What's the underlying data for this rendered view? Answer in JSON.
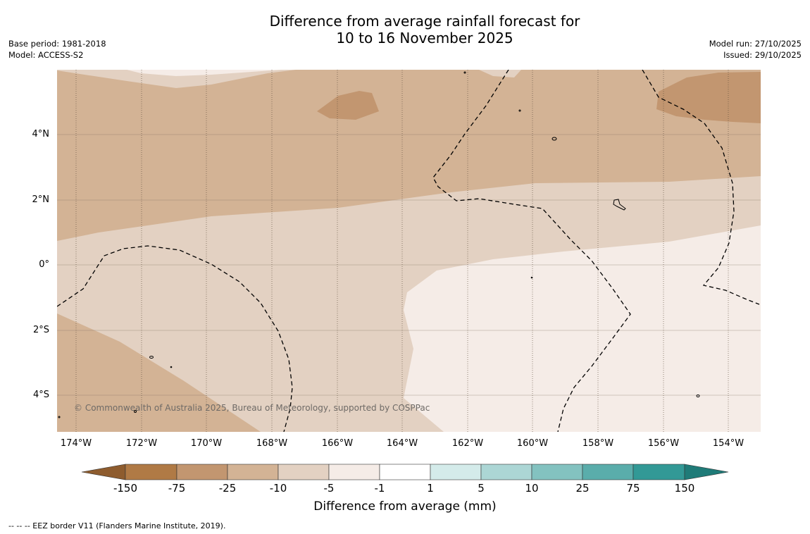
{
  "title": {
    "line1": "Difference from average rainfall forecast for",
    "line2": "10 to 16 November 2025"
  },
  "meta_left": {
    "base_period": "Base period: 1981-2018",
    "model": "Model: ACCESS-S2"
  },
  "meta_right": {
    "model_run": "Model run: 27/10/2025",
    "issued": "Issued: 29/10/2025"
  },
  "map": {
    "lat_labels": [
      "4°N",
      "2°N",
      "0°",
      "2°S",
      "4°S"
    ],
    "lon_labels": [
      "174°W",
      "172°W",
      "170°W",
      "168°W",
      "166°W",
      "164°W",
      "162°W",
      "160°W",
      "158°W",
      "156°W",
      "154°W"
    ],
    "copyright": "© Commonwealth of Australia 2025, Bureau of Meteorology, supported by COSPPac",
    "boundary_style": "dashed EEZ border"
  },
  "colorbar": {
    "title": "Difference from average (mm)",
    "labels": [
      "-150",
      "-75",
      "-25",
      "-10",
      "-5",
      "-1",
      "1",
      "5",
      "10",
      "25",
      "75",
      "150"
    ],
    "colors": {
      "below_-150": "#8e5c2e",
      "-150_-75": "#b07a45",
      "-75_-25": "#c29670",
      "-25_-10": "#d3b395",
      "-10_-5": "#e3d1c2",
      "-5_-1": "#f5ece7",
      "-1_1": "#ffffff",
      "1_5": "#d4ebea",
      "5_10": "#acd6d5",
      "10_25": "#83c2c0",
      "25_75": "#5aadab",
      "75_150": "#329996",
      "above_150": "#1f7b78"
    }
  },
  "footnote": "--  --  -- EEZ border V11 (Flanders Marine Institute, 2019)."
}
